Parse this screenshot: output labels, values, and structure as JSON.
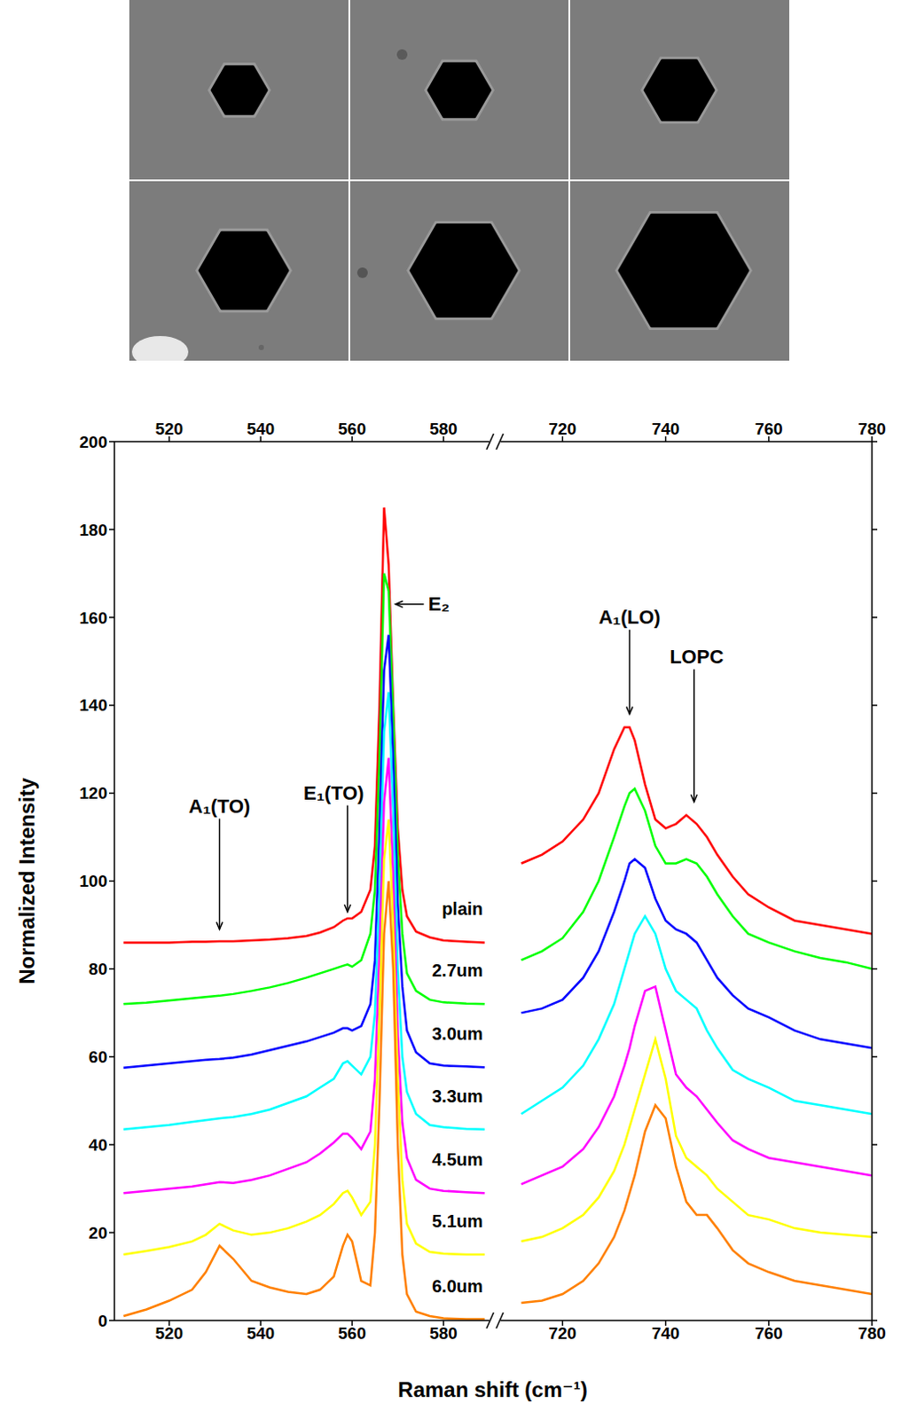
{
  "chart_data": [
    {
      "type": "line",
      "ylabel": "Normalized Intensity",
      "xlabel": "Raman shift (cm⁻¹)",
      "xlim": [
        508,
        590
      ],
      "xticks": [
        520,
        540,
        560,
        580
      ],
      "ylim": [
        0,
        200
      ],
      "yticks": [
        0,
        20,
        40,
        60,
        80,
        100,
        120,
        140,
        160,
        180,
        200
      ],
      "grid": false,
      "x": [
        510,
        515,
        520,
        525,
        528,
        531,
        534,
        538,
        542,
        546,
        550,
        553,
        556,
        558,
        559,
        560,
        562,
        564,
        565,
        566,
        567,
        568,
        569,
        570,
        571,
        572,
        574,
        577,
        580,
        585,
        589
      ],
      "series": [
        {
          "name": "plain",
          "color": "#ff0000",
          "values": [
            86,
            86,
            86,
            86.2,
            86.2,
            86.3,
            86.3,
            86.5,
            86.7,
            87,
            87.5,
            88.3,
            89.5,
            91,
            91.5,
            91.5,
            93,
            98,
            108,
            140,
            185,
            172,
            140,
            112,
            98,
            92,
            88.5,
            87.2,
            86.5,
            86.2,
            86
          ]
        },
        {
          "name": "2.7um",
          "color": "#00ff00",
          "values": [
            72,
            72.3,
            72.8,
            73.3,
            73.6,
            73.9,
            74.3,
            75,
            75.8,
            76.8,
            78,
            79,
            80,
            80.7,
            81,
            80.5,
            82,
            88,
            98,
            128,
            170,
            166,
            138,
            106,
            88,
            79,
            75,
            73,
            72.4,
            72.1,
            72
          ]
        },
        {
          "name": "3.0um",
          "color": "#0000ff",
          "values": [
            57.5,
            58,
            58.5,
            59,
            59.3,
            59.5,
            59.8,
            60.5,
            61.5,
            62.5,
            63.5,
            64.5,
            65.5,
            66.5,
            66.5,
            66,
            67,
            72,
            82,
            112,
            148,
            156,
            128,
            95,
            76,
            66,
            61,
            58.5,
            58,
            57.8,
            57.6
          ]
        },
        {
          "name": "3.3um",
          "color": "#00ffff",
          "values": [
            43.5,
            44,
            44.5,
            45.2,
            45.6,
            46,
            46.3,
            47,
            48,
            49.5,
            51,
            53,
            55,
            58.5,
            59,
            58,
            56,
            60,
            70,
            98,
            134,
            143,
            116,
            80,
            60,
            52,
            47,
            44.5,
            44,
            43.6,
            43.5
          ]
        },
        {
          "name": "4.5um",
          "color": "#ff00ff",
          "values": [
            29,
            29.5,
            30,
            30.5,
            31,
            31.5,
            31.3,
            32,
            33,
            34.5,
            36,
            38,
            40.5,
            42.5,
            42.5,
            41.5,
            39,
            43,
            55,
            84,
            118,
            128,
            101,
            65,
            45,
            37,
            32,
            30,
            29.5,
            29.2,
            29
          ]
        },
        {
          "name": "5.1um",
          "color": "#ffff00",
          "values": [
            15,
            15.8,
            16.7,
            18,
            19.5,
            22,
            20.5,
            19.5,
            20,
            21,
            22.5,
            24,
            26.5,
            29,
            29.5,
            28,
            24,
            27,
            40,
            70,
            105,
            114,
            90,
            55,
            32,
            22,
            17.5,
            15.6,
            15.2,
            15,
            15
          ]
        },
        {
          "name": "6.0um",
          "color": "#ff8000",
          "values": [
            1,
            2.5,
            4.5,
            7,
            11,
            17,
            14,
            9,
            7.5,
            6.5,
            6,
            7,
            10,
            17,
            19.5,
            18,
            9,
            8,
            20,
            50,
            88,
            100,
            80,
            40,
            15,
            6,
            2,
            1,
            0.5,
            0.3,
            0.3
          ]
        }
      ],
      "annotations": [
        {
          "text": "A₁(TO)",
          "x": 531,
          "y": 89,
          "xytext": [
            531,
            117
          ]
        },
        {
          "text": "E₁(TO)",
          "x": 559,
          "y": 93,
          "xytext": [
            556,
            120
          ]
        },
        {
          "text": "E₂",
          "x": 569.5,
          "y": 163,
          "xytext": [
            579,
            163
          ]
        }
      ]
    },
    {
      "type": "line",
      "xlim": [
        708,
        780
      ],
      "xticks": [
        720,
        740,
        760,
        780
      ],
      "ylim": [
        0,
        200
      ],
      "yticks": [
        0,
        20,
        40,
        60,
        80,
        100,
        120,
        140,
        160,
        180,
        200
      ],
      "grid": false,
      "tick_labels": "x",
      "x": [
        712,
        716,
        720,
        724,
        727,
        730,
        732,
        733,
        734,
        736,
        738,
        740,
        742,
        744,
        746,
        748,
        750,
        753,
        756,
        760,
        765,
        770,
        775,
        780
      ],
      "series": [
        {
          "color": "#ff0000",
          "values": [
            104,
            106,
            109,
            114,
            120,
            130,
            135,
            135,
            132,
            122,
            114,
            112,
            113,
            115,
            113,
            110,
            106,
            101,
            97,
            94,
            91,
            90,
            89,
            88
          ]
        },
        {
          "color": "#00ff00",
          "values": [
            82,
            84,
            87,
            93,
            100,
            110,
            117,
            120,
            121,
            116,
            108,
            104,
            104,
            105,
            104,
            101,
            97,
            92,
            88,
            86,
            84,
            82.5,
            81.5,
            80
          ]
        },
        {
          "color": "#0000ff",
          "values": [
            70,
            71,
            73,
            78,
            84,
            93,
            100,
            104,
            105,
            103,
            96,
            91,
            89,
            88,
            86,
            82,
            78,
            74,
            71,
            69,
            66,
            64,
            63,
            62
          ]
        },
        {
          "color": "#00ffff",
          "values": [
            47,
            50,
            53,
            58,
            64,
            72,
            80,
            84,
            88,
            92,
            88,
            80,
            75,
            73,
            71,
            66,
            62,
            57,
            55,
            53,
            50,
            49,
            48,
            47
          ]
        },
        {
          "color": "#ff00ff",
          "values": [
            31,
            33,
            35,
            39,
            44,
            51,
            58,
            62,
            67,
            75,
            76,
            66,
            56,
            53,
            51,
            48,
            45,
            41,
            39,
            37,
            36,
            35,
            34,
            33
          ]
        },
        {
          "color": "#ffff00",
          "values": [
            18,
            19,
            21,
            24,
            28,
            34,
            40,
            44,
            48,
            56,
            64,
            55,
            42,
            37,
            35,
            33,
            30,
            27,
            24,
            23,
            21,
            20,
            19.5,
            19
          ]
        },
        {
          "color": "#ff8000",
          "values": [
            4,
            4.5,
            6,
            9,
            13,
            19,
            25,
            29,
            33,
            43,
            49,
            46,
            35,
            27,
            24,
            24,
            21,
            16,
            13,
            11,
            9,
            8,
            7,
            6
          ]
        }
      ],
      "annotations": [
        {
          "text": "A₁(LO)",
          "x": 733,
          "y": 138,
          "xytext": [
            733,
            160
          ]
        },
        {
          "text": "LOPC",
          "x": 745.5,
          "y": 118,
          "xytext": [
            746,
            151
          ]
        }
      ]
    }
  ]
}
